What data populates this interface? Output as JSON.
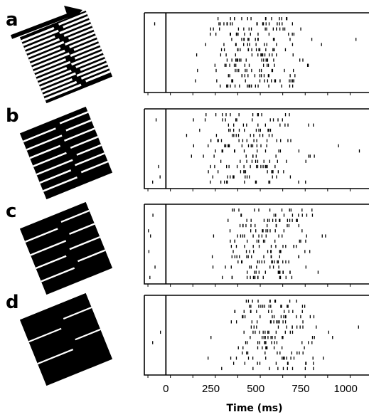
{
  "chart_data": {
    "type": "scatter",
    "description_kind": "raster",
    "xlabel": "Time (ms)",
    "x_ticks": [
      0,
      250,
      500,
      750,
      1000
    ],
    "xlim": [
      -120,
      1130
    ],
    "stimulus_onset_ms": 0,
    "panels": [
      {
        "label": "a",
        "grating": "dense",
        "trials": 14,
        "response_window_ms": [
          200,
          900
        ],
        "peak_ms": 500,
        "spread_ms": 145,
        "spikes_per_trial": 16,
        "early_spikes_ms": [
          -95,
          -35
        ],
        "seed": 11
      },
      {
        "label": "b",
        "grating": "medium",
        "trials": 14,
        "response_window_ms": [
          150,
          800
        ],
        "peak_ms": 470,
        "spread_ms": 140,
        "spikes_per_trial": 14,
        "early_spikes_ms": [
          -80,
          -20
        ],
        "seed": 23
      },
      {
        "label": "c",
        "grating": "sparse",
        "trials": 14,
        "response_window_ms": [
          200,
          880
        ],
        "peak_ms": 560,
        "spread_ms": 130,
        "spikes_per_trial": 13,
        "early_spikes_ms": [
          -100,
          -55
        ],
        "seed": 37
      },
      {
        "label": "d",
        "grating": "very-sparse",
        "trials": 14,
        "response_window_ms": [
          180,
          870
        ],
        "peak_ms": 580,
        "spread_ms": 125,
        "spikes_per_trial": 12,
        "early_spikes_ms": [
          -90,
          -30
        ],
        "seed": 51
      }
    ]
  }
}
